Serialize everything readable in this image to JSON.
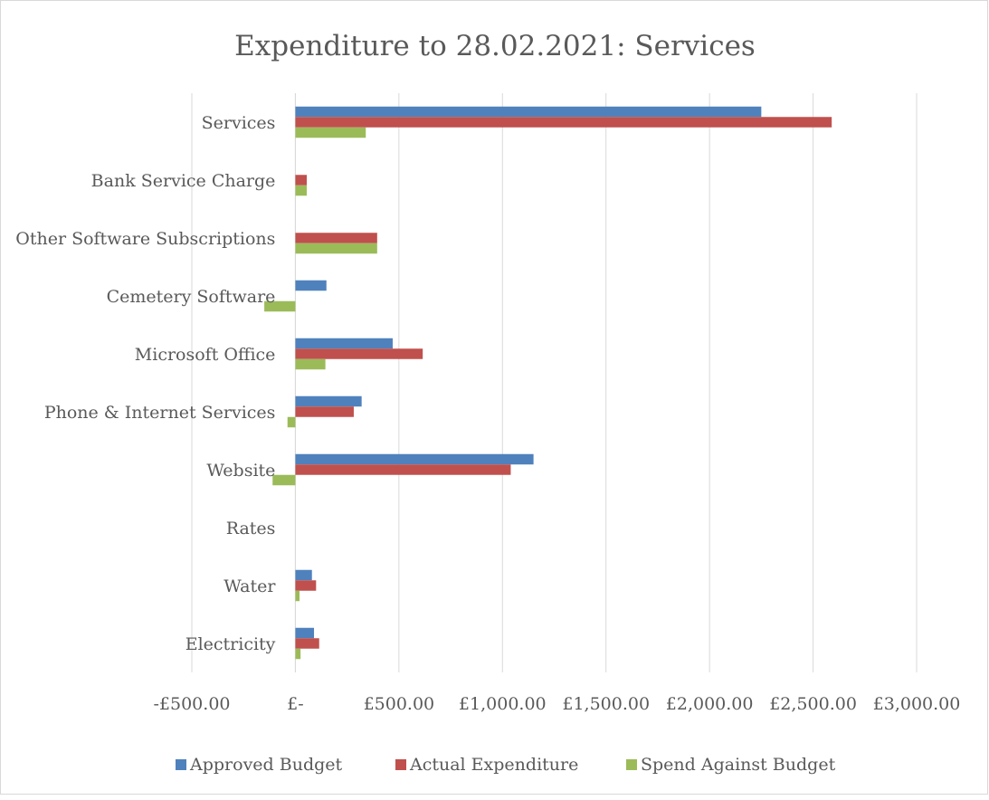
{
  "chart_data": {
    "type": "bar",
    "orientation": "horizontal",
    "title": "Expenditure to 28.02.2021: Services",
    "categories": [
      "Services",
      "Bank Service Charge",
      "Other Software Subscriptions",
      "Cemetery Software",
      "Microsoft Office",
      "Phone & Internet Services",
      "Website",
      "Rates",
      "Water",
      "Electricity"
    ],
    "series": [
      {
        "name": "Approved Budget",
        "color": "#4f81bd",
        "values": [
          2250,
          0,
          0,
          150,
          470,
          320,
          1150,
          0,
          80,
          90
        ]
      },
      {
        "name": "Actual Expenditure",
        "color": "#c0504d",
        "values": [
          2590,
          55,
          395,
          0,
          615,
          282,
          1040,
          0,
          100,
          115
        ]
      },
      {
        "name": "Spend Against Budget",
        "color": "#9bbb59",
        "values": [
          340,
          55,
          395,
          -150,
          145,
          -38,
          -110,
          0,
          20,
          25
        ]
      }
    ],
    "xlim": [
      -500,
      3000
    ],
    "xticks": [
      -500,
      0,
      500,
      1000,
      1500,
      2000,
      2500,
      3000
    ],
    "xtick_labels": [
      "-£500.00",
      "£-",
      "£500.00",
      "£1,000.00",
      "£1,500.00",
      "£2,000.00",
      "£2,500.00",
      "£3,000.00"
    ],
    "grid": true,
    "legend": "bottom"
  }
}
